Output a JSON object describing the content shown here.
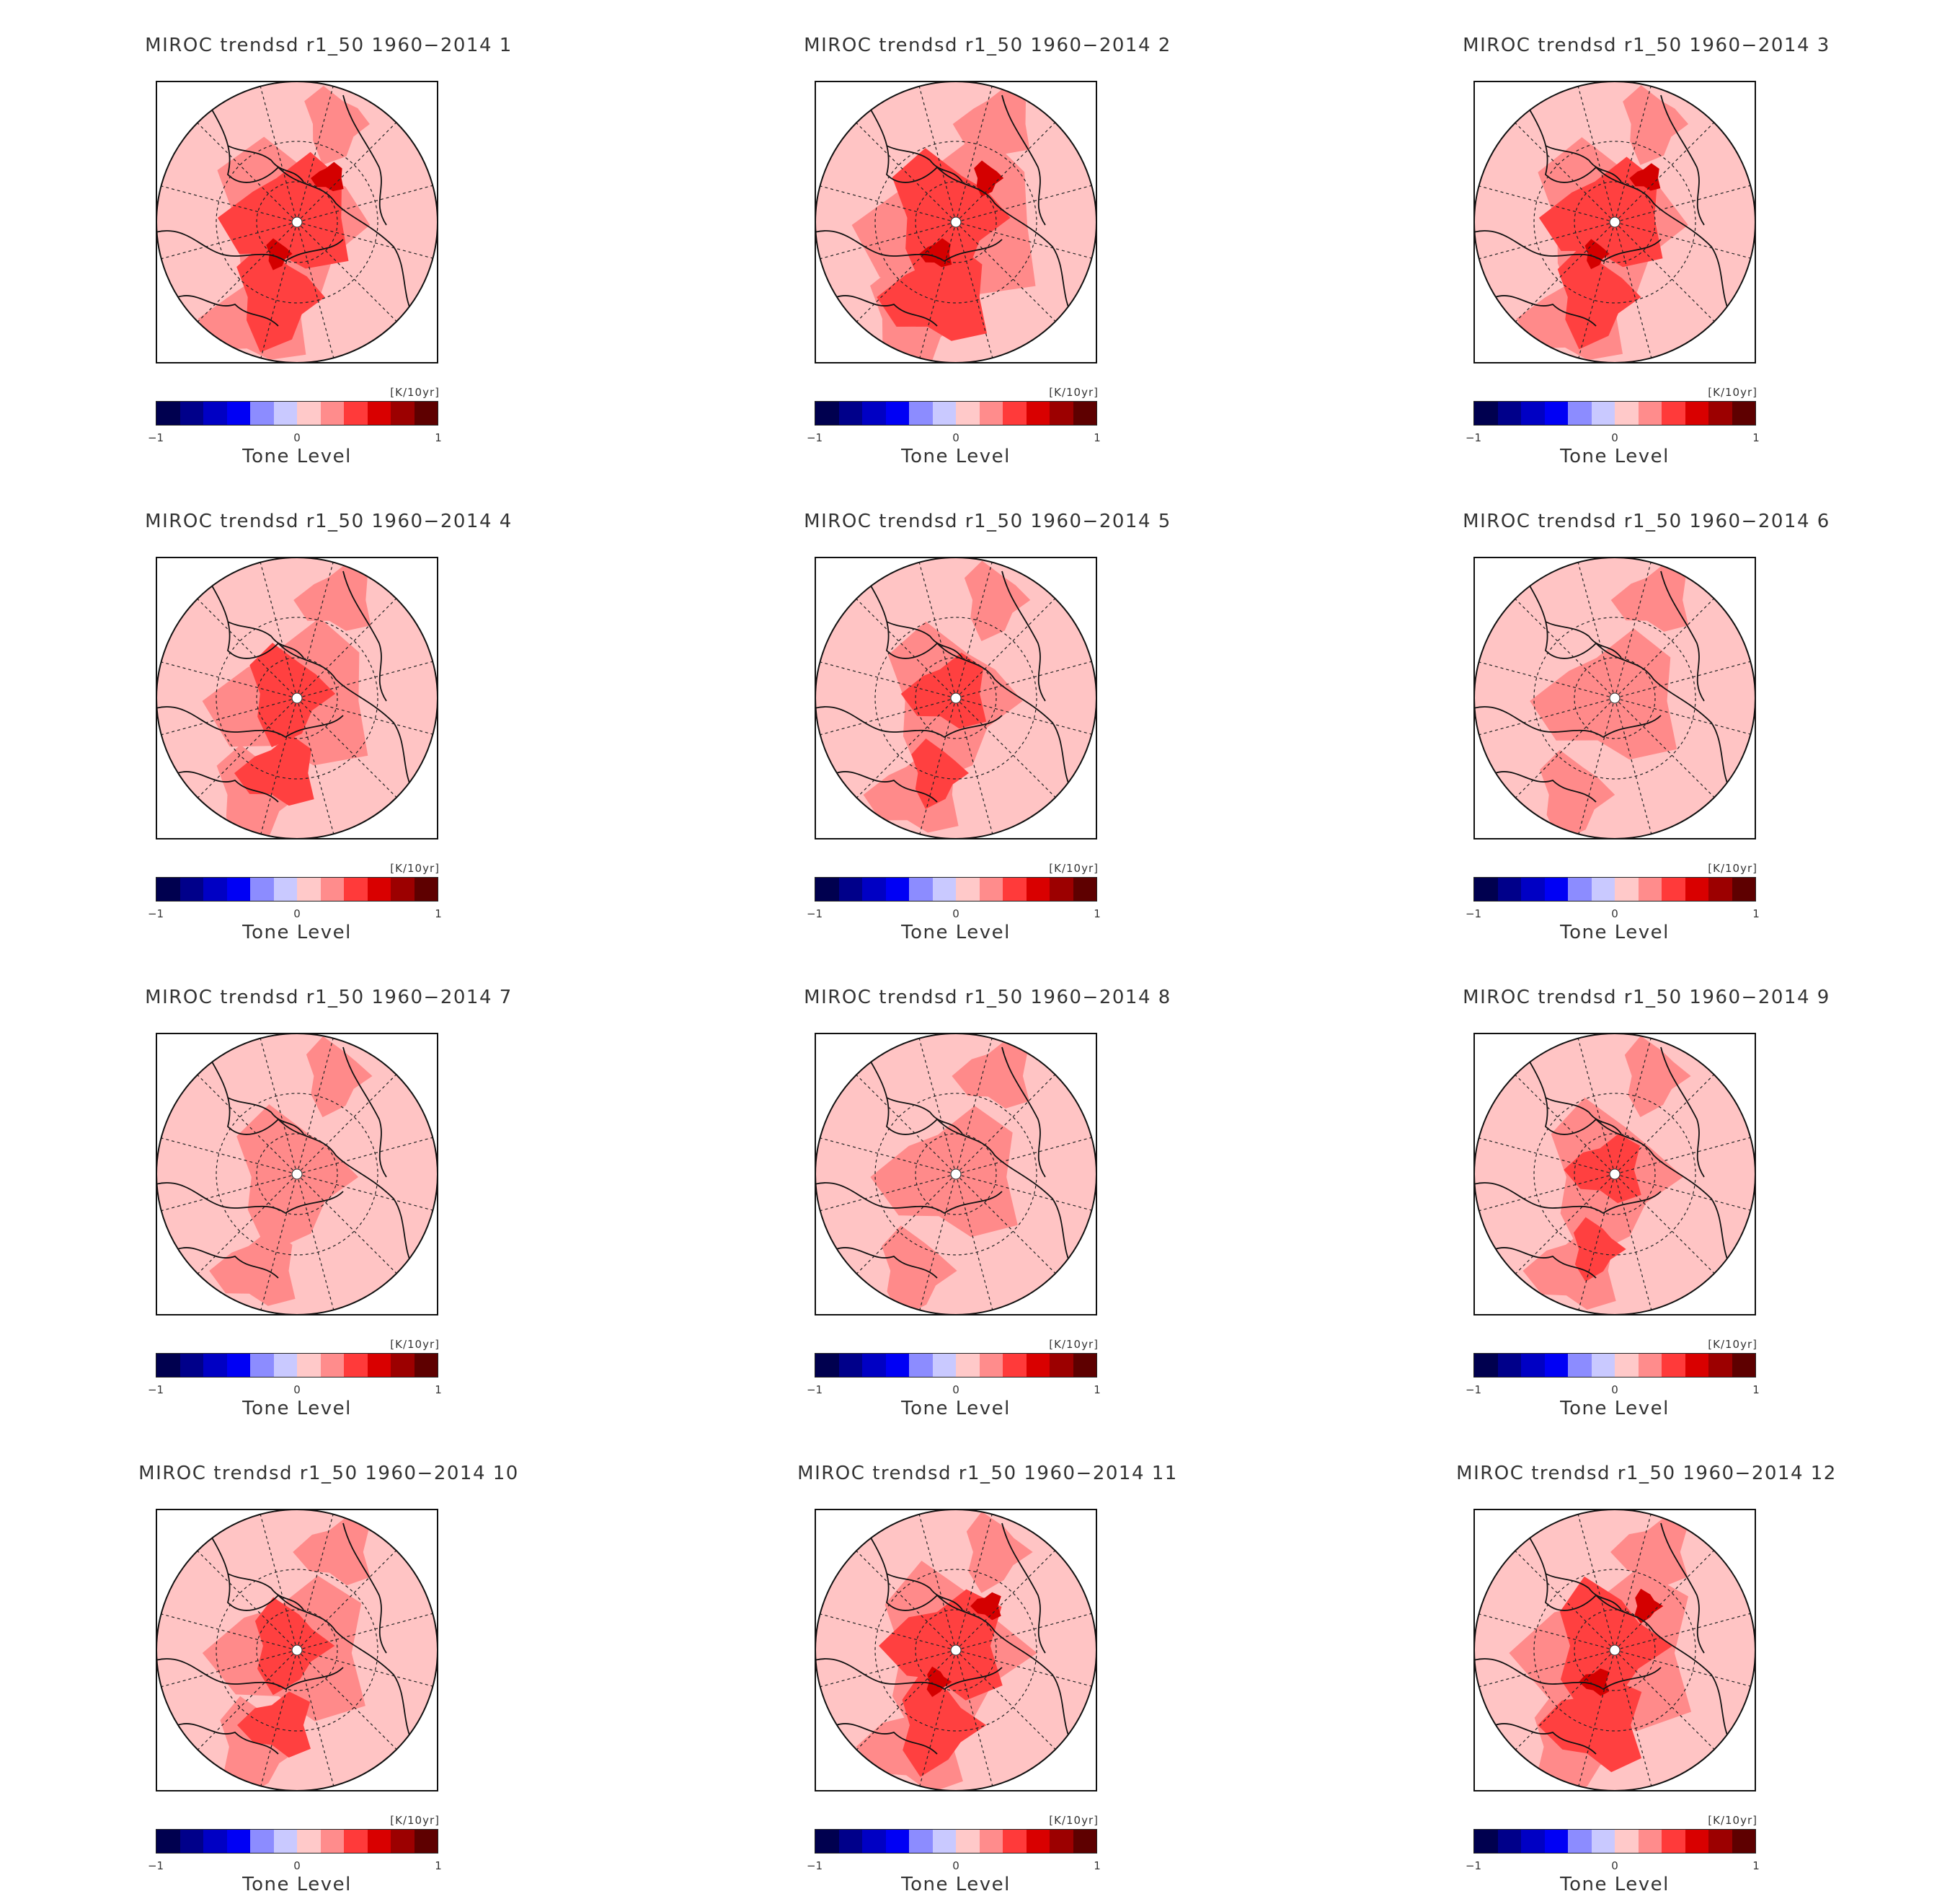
{
  "figure": {
    "panels": [
      {
        "title": "MIROC trendsd r1_50 1960−2014 1",
        "intensity": 0.85
      },
      {
        "title": "MIROC trendsd r1_50 1960−2014 2",
        "intensity": 0.9
      },
      {
        "title": "MIROC trendsd r1_50 1960−2014 3",
        "intensity": 0.8
      },
      {
        "title": "MIROC trendsd r1_50 1960−2014 4",
        "intensity": 0.65
      },
      {
        "title": "MIROC trendsd r1_50 1960−2014 5",
        "intensity": 0.55
      },
      {
        "title": "MIROC trendsd r1_50 1960−2014 6",
        "intensity": 0.4
      },
      {
        "title": "MIROC trendsd r1_50 1960−2014 7",
        "intensity": 0.35
      },
      {
        "title": "MIROC trendsd r1_50 1960−2014 8",
        "intensity": 0.4
      },
      {
        "title": "MIROC trendsd r1_50 1960−2014 9",
        "intensity": 0.5
      },
      {
        "title": "MIROC trendsd r1_50 1960−2014 10",
        "intensity": 0.6
      },
      {
        "title": "MIROC trendsd r1_50 1960−2014 11",
        "intensity": 0.8
      },
      {
        "title": "MIROC trendsd r1_50 1960−2014 12",
        "intensity": 0.85
      }
    ],
    "colorbar": {
      "unit": "[K/10yr]",
      "label": "Tone Level",
      "ticks": [
        "−1",
        "0",
        "1"
      ],
      "range": [
        -1,
        1
      ],
      "colors": [
        "#00004f",
        "#00008a",
        "#0000c4",
        "#0000f5",
        "#8c8cff",
        "#c9c9ff",
        "#ffc9c9",
        "#ff8c8c",
        "#ff3a3a",
        "#d90000",
        "#9c0000",
        "#5e0000"
      ]
    },
    "map_colors": {
      "outside": "#ffffff",
      "level_0": "#ffc4c4",
      "level_1": "#ff8a8a",
      "level_2": "#ff4040",
      "level_3": "#d40000",
      "level_4": "#8e0000",
      "coast": "#111111",
      "grid": "#222222"
    }
  }
}
